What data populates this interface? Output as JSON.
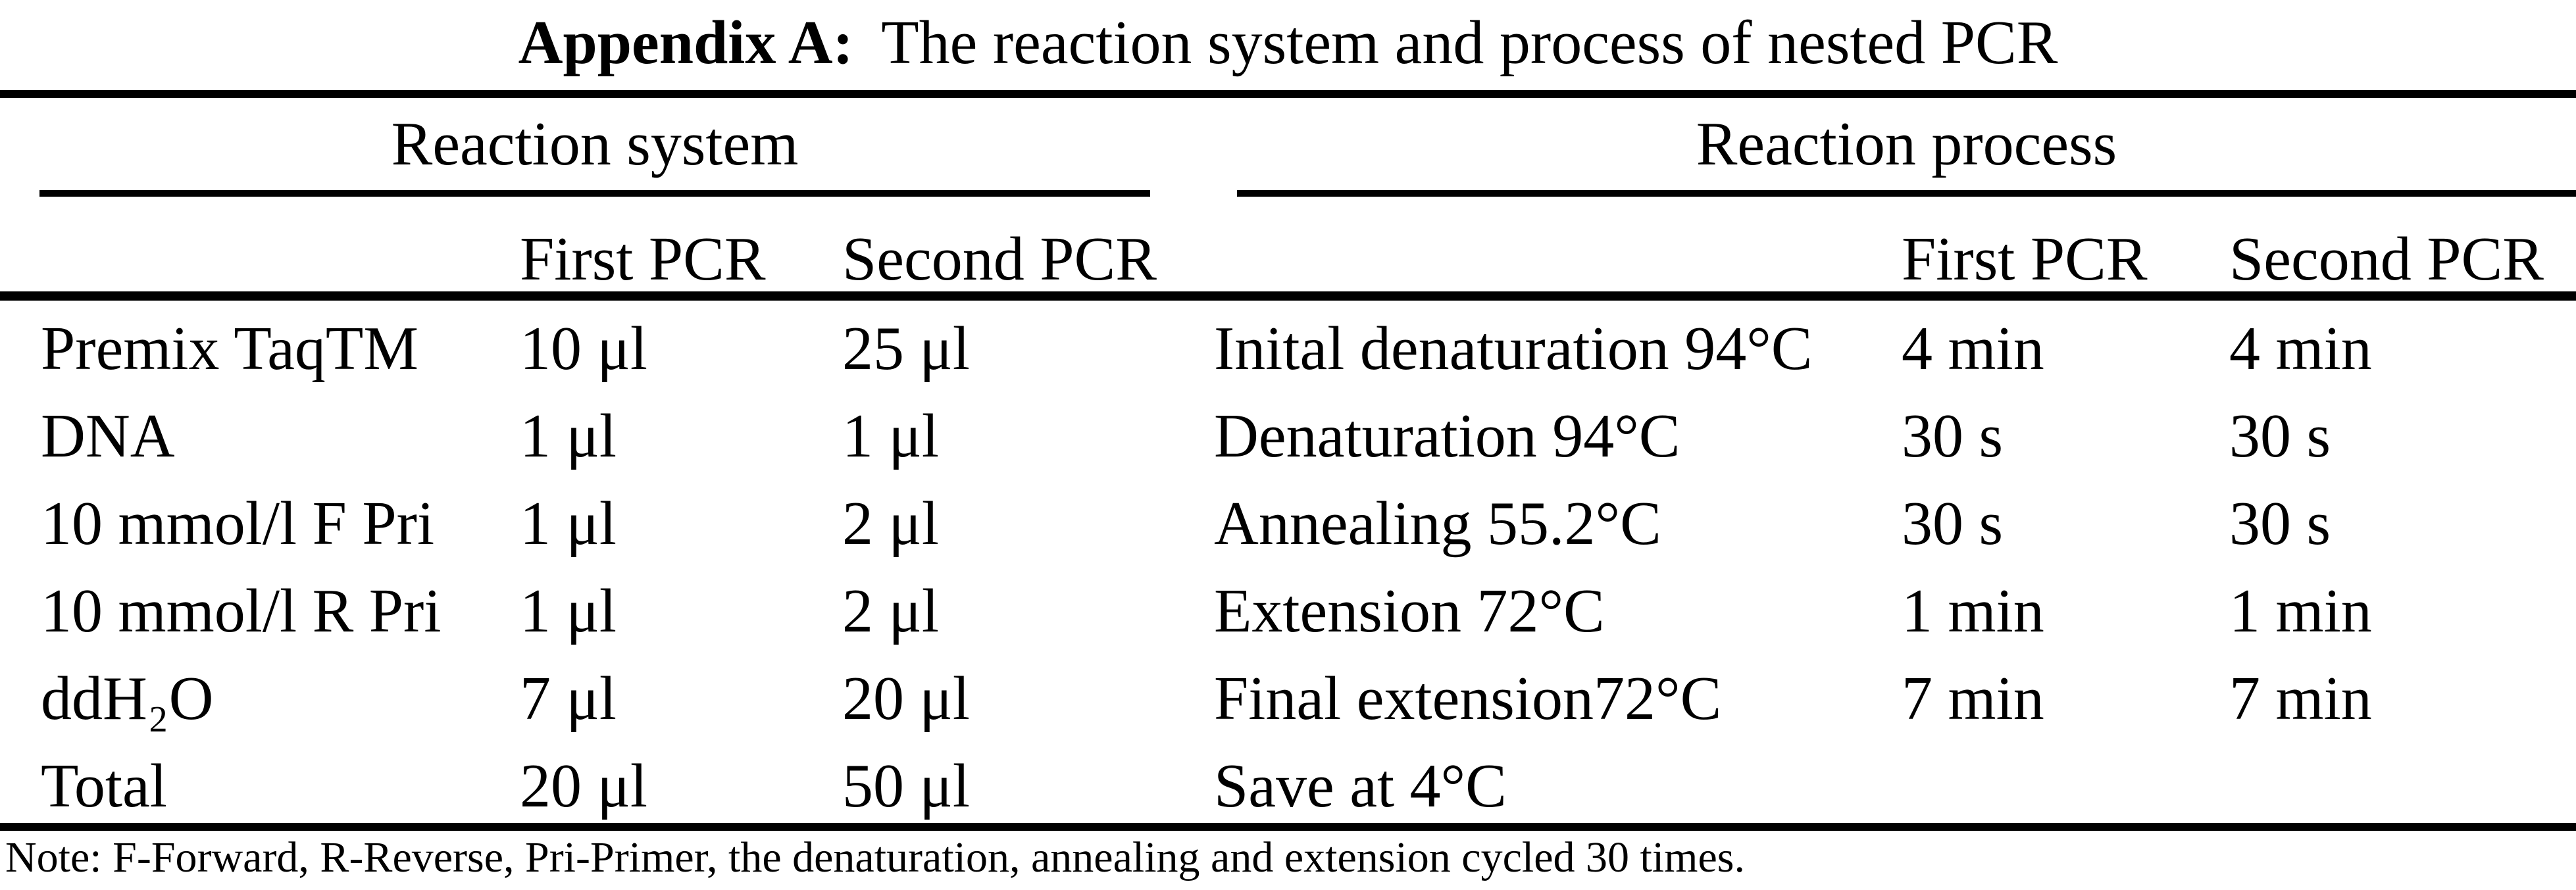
{
  "title": {
    "bold": "Appendix A:",
    "text": "The reaction system and process of nested PCR"
  },
  "table": {
    "groups": [
      {
        "label": "Reaction system"
      },
      {
        "label": "Reaction process"
      }
    ],
    "column_headers": {
      "system": {
        "first": "First PCR",
        "second": "Second PCR"
      },
      "process": {
        "first": "First PCR",
        "second": "Second PCR"
      }
    },
    "rows": [
      {
        "reagent": "Premix TaqTM",
        "first_volume": "10 μl",
        "second_volume": "25 μl",
        "step": "Inital denaturation 94°C",
        "first_time": "4 min",
        "second_time": "4 min"
      },
      {
        "reagent": "DNA",
        "first_volume": "1 μl",
        "second_volume": "1 μl",
        "step": "Denaturation 94°C",
        "first_time": "30 s",
        "second_time": "30 s"
      },
      {
        "reagent": "10 mmol/l F Pri",
        "first_volume": "1 μl",
        "second_volume": "2 μl",
        "step": "Annealing 55.2°C",
        "first_time": "30 s",
        "second_time": "30 s"
      },
      {
        "reagent": "10 mmol/l R Pri",
        "first_volume": "1 μl",
        "second_volume": "2 μl",
        "step": "Extension 72°C",
        "first_time": "1 min",
        "second_time": "1 min"
      },
      {
        "reagent": "ddH₂O",
        "first_volume": "7 μl",
        "second_volume": "20 μl",
        "step": "Final extension72°C",
        "first_time": "7 min",
        "second_time": "7 min"
      },
      {
        "reagent": "Total",
        "first_volume": "20 μl",
        "second_volume": "50 μl",
        "step": "Save at 4°C",
        "first_time": "",
        "second_time": ""
      }
    ]
  },
  "note": "Note: F-Forward, R-Reverse, Pri-Primer, the denaturation, annealing and extension cycled 30 times.",
  "colors": {
    "text": "#000000",
    "background": "#ffffff",
    "rule": "#000000"
  }
}
